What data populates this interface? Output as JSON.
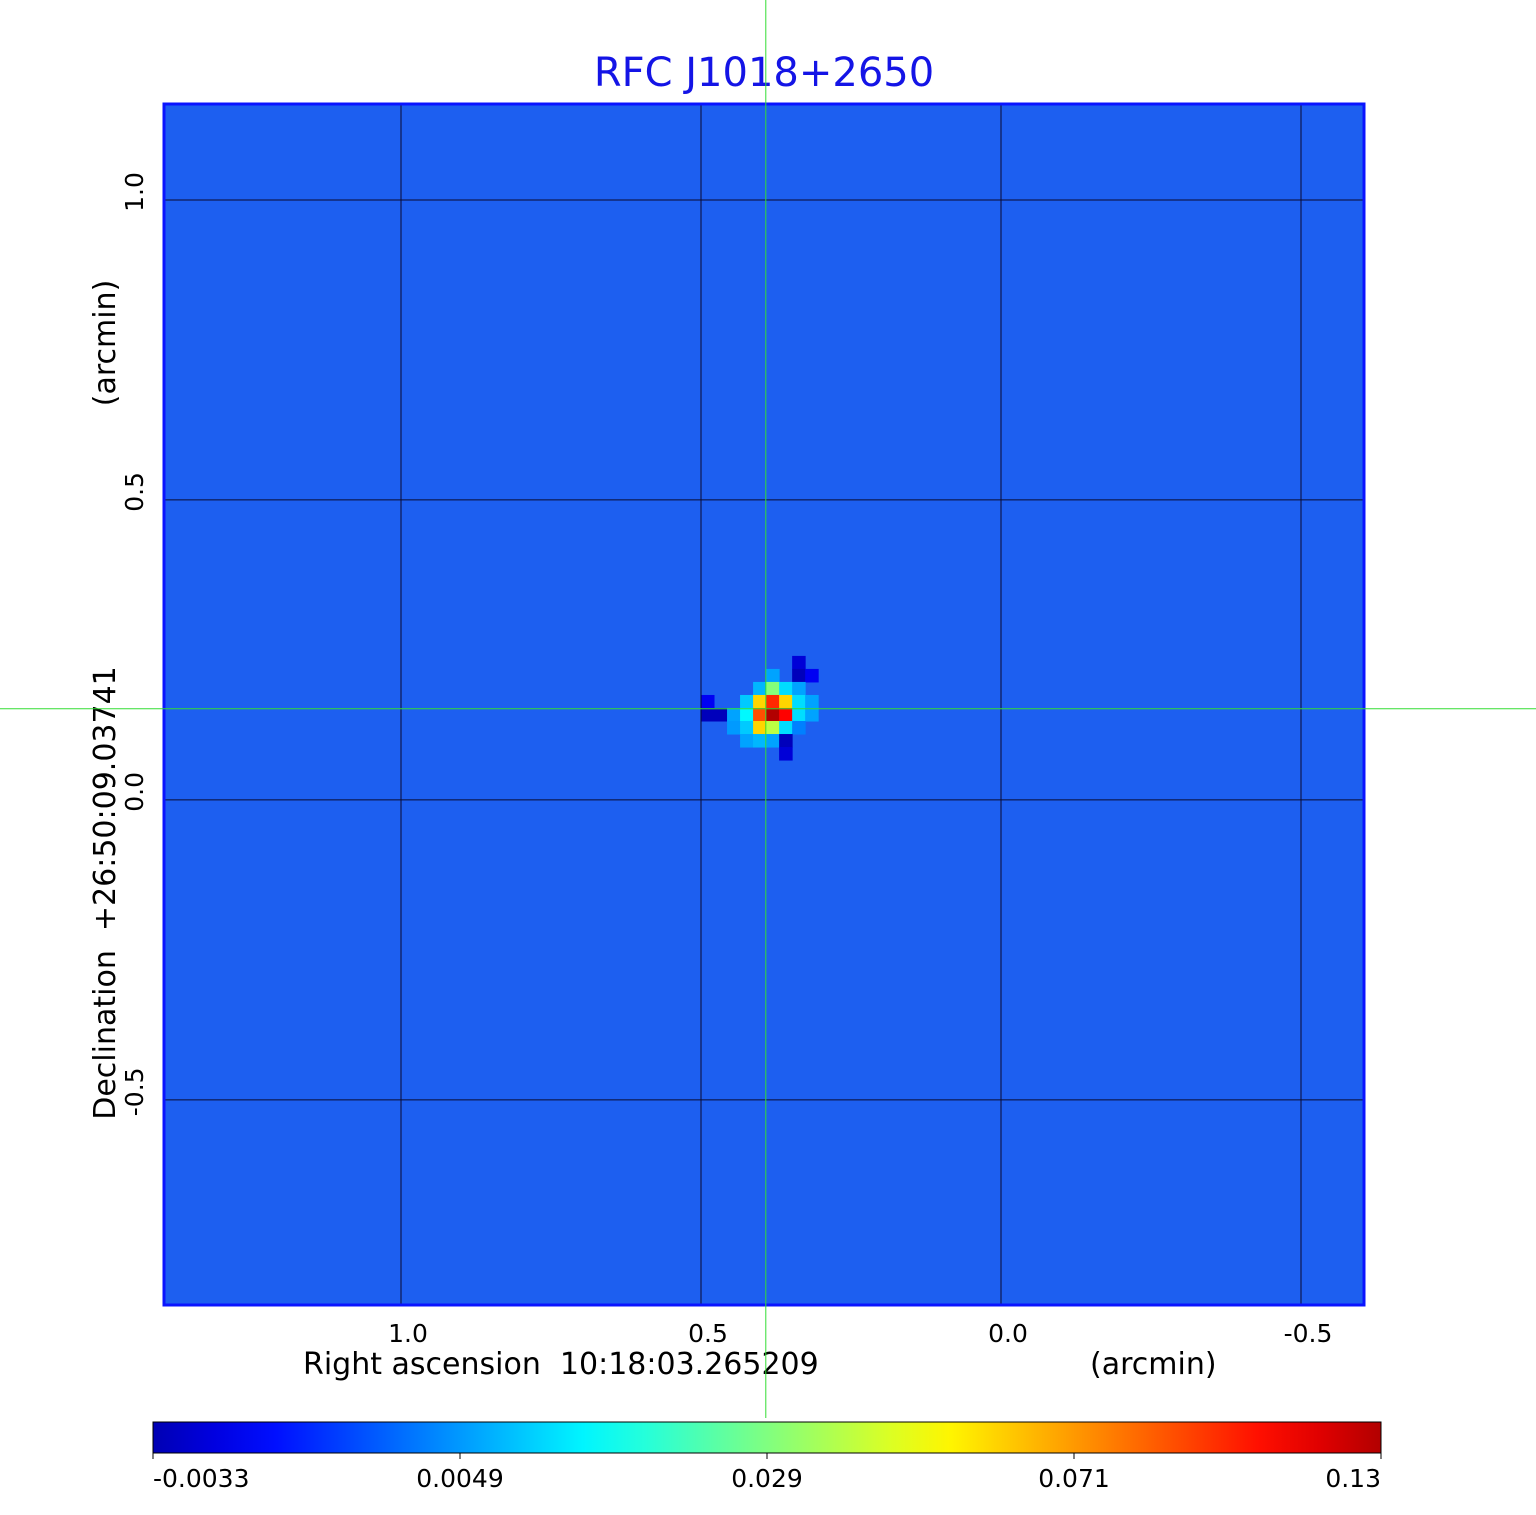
{
  "chart_data": {
    "type": "heatmap",
    "title": "RFC J1018+2650",
    "xlabel": "Right ascension  10:18:03.265209",
    "xunit": "(arcmin)",
    "ylabel": "Declination  +26:50:09.03741",
    "yunit": "(arcmin)",
    "x_ticks": [
      1.0,
      0.5,
      0.0,
      -0.5
    ],
    "x_tick_labels": [
      "1.0",
      "0.5",
      "0.0",
      "-0.5"
    ],
    "y_ticks": [
      1.0,
      0.5,
      0.0,
      -0.5
    ],
    "y_tick_labels": [
      "1.0",
      "0.5",
      "0.0",
      "-0.5"
    ],
    "xlim": [
      1.395,
      -0.605
    ],
    "ylim": [
      -0.842,
      1.16
    ],
    "grid": true,
    "crosshair": {
      "x": 0.392,
      "y": 0.152,
      "color": "#33dd33"
    },
    "colormap": "jet",
    "background_value": 0.0015,
    "colorbar": {
      "ticks": [
        -0.0033,
        0.0049,
        0.029,
        0.071,
        0.13
      ],
      "tick_labels": [
        "-0.0033",
        "0.0049",
        "0.029",
        "0.071",
        "0.13"
      ],
      "placement": "bottom"
    },
    "source_patch": {
      "pixel_arcmin": 0.0217,
      "origin_arcmin": [
        0.5,
        0.24
      ],
      "values": [
        [
          null,
          null,
          null,
          null,
          null,
          null,
          null,
          -0.002,
          null
        ],
        [
          null,
          null,
          null,
          null,
          null,
          0.006,
          null,
          -0.003,
          -0.001
        ],
        [
          null,
          null,
          null,
          null,
          0.008,
          0.03,
          0.012,
          0.006,
          null
        ],
        [
          -0.001,
          null,
          null,
          0.01,
          0.06,
          0.1,
          0.06,
          0.012,
          0.006
        ],
        [
          -0.003,
          -0.003,
          0.006,
          0.015,
          0.09,
          0.13,
          0.11,
          0.012,
          0.006
        ],
        [
          null,
          null,
          0.005,
          0.01,
          0.06,
          0.04,
          0.012,
          0.004,
          null
        ],
        [
          null,
          null,
          null,
          0.006,
          0.008,
          0.006,
          -0.003,
          null,
          null
        ],
        [
          null,
          null,
          null,
          null,
          null,
          null,
          -0.002,
          null,
          null
        ]
      ]
    },
    "colors": {
      "title": "#1414e6",
      "frame": "#0a14ff",
      "background": "#1d5ff0",
      "grid": "#0a0a30"
    }
  }
}
